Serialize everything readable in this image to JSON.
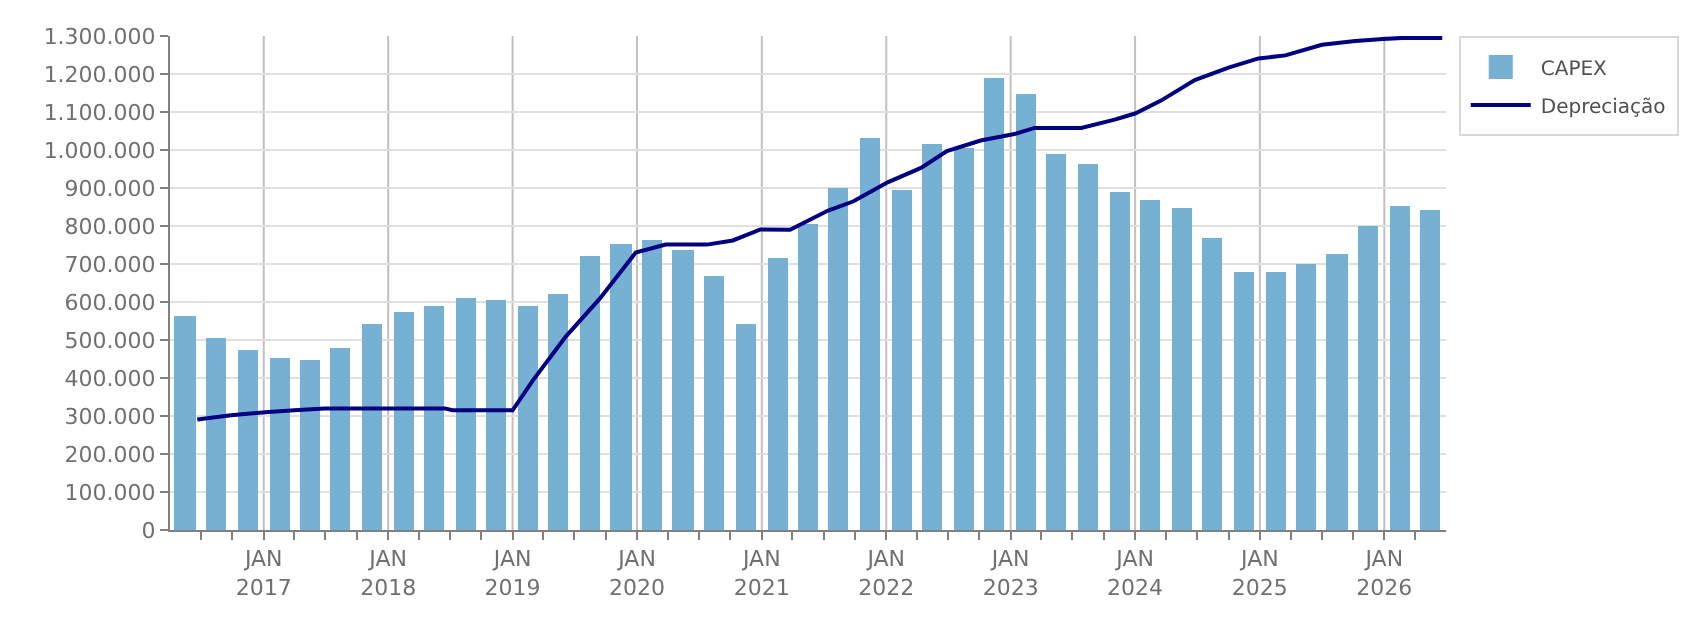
{
  "chart_data": {
    "type": "bar",
    "xlim": [
      "2016-04-01",
      "2026-07-01"
    ],
    "xticks": [
      {
        "value": "2016-07-01",
        "label": null
      },
      {
        "value": "2016-10-01",
        "label": null
      },
      {
        "value": "2017-01-01",
        "label": "JAN\n2017"
      },
      {
        "value": "2017-04-01",
        "label": null
      },
      {
        "value": "2017-07-01",
        "label": null
      },
      {
        "value": "2017-10-01",
        "label": null
      },
      {
        "value": "2018-01-01",
        "label": "JAN\n2018"
      },
      {
        "value": "2018-04-01",
        "label": null
      },
      {
        "value": "2018-07-01",
        "label": null
      },
      {
        "value": "2018-10-01",
        "label": null
      },
      {
        "value": "2019-01-01",
        "label": "JAN\n2019"
      },
      {
        "value": "2019-04-01",
        "label": null
      },
      {
        "value": "2019-07-01",
        "label": null
      },
      {
        "value": "2019-10-01",
        "label": null
      },
      {
        "value": "2020-01-01",
        "label": "JAN\n2020"
      },
      {
        "value": "2020-04-01",
        "label": null
      },
      {
        "value": "2020-07-01",
        "label": null
      },
      {
        "value": "2020-10-01",
        "label": null
      },
      {
        "value": "2021-01-01",
        "label": "JAN\n2021"
      },
      {
        "value": "2021-04-01",
        "label": null
      },
      {
        "value": "2021-07-01",
        "label": null
      },
      {
        "value": "2021-10-01",
        "label": null
      },
      {
        "value": "2022-01-01",
        "label": "JAN\n2022"
      },
      {
        "value": "2022-04-01",
        "label": null
      },
      {
        "value": "2022-07-01",
        "label": null
      },
      {
        "value": "2022-10-01",
        "label": null
      },
      {
        "value": "2023-01-01",
        "label": "JAN\n2023"
      },
      {
        "value": "2023-04-01",
        "label": null
      },
      {
        "value": "2023-07-01",
        "label": null
      },
      {
        "value": "2023-10-01",
        "label": null
      },
      {
        "value": "2024-01-01",
        "label": "JAN\n2024"
      },
      {
        "value": "2024-04-01",
        "label": null
      },
      {
        "value": "2024-07-01",
        "label": null
      },
      {
        "value": "2024-10-01",
        "label": null
      },
      {
        "value": "2025-01-01",
        "label": "JAN\n2025"
      },
      {
        "value": "2025-04-01",
        "label": null
      },
      {
        "value": "2025-07-01",
        "label": null
      },
      {
        "value": "2025-10-01",
        "label": null
      },
      {
        "value": "2026-01-01",
        "label": "JAN\n2026"
      },
      {
        "value": "2026-04-01",
        "label": null
      }
    ],
    "ylim": [
      0,
      1300000
    ],
    "yticks": [
      0,
      {
        "value": 100000,
        "label": "100.000"
      },
      {
        "value": 200000,
        "label": "200.000"
      },
      {
        "value": 300000,
        "label": "300.000"
      },
      {
        "value": 400000,
        "label": "400.000"
      },
      {
        "value": 500000,
        "label": "500.000"
      },
      {
        "value": 600000,
        "label": "600.000"
      },
      {
        "value": 700000,
        "label": "700.000"
      },
      {
        "value": 800000,
        "label": "800.000"
      },
      {
        "value": 900000,
        "label": "900.000"
      },
      {
        "value": 1000000,
        "label": "1.000.000"
      },
      {
        "value": 1100000,
        "label": "1.100.000"
      },
      {
        "value": 1200000,
        "label": "1.200.000"
      },
      {
        "value": 1300000,
        "label": "1.300.000"
      }
    ],
    "grid": true,
    "legend": "top right",
    "x": [
      "2016-05-15",
      "2016-08-15",
      "2016-11-15",
      "2017-02-15",
      "2017-05-15",
      "2017-08-15",
      "2017-11-15",
      "2018-02-15",
      "2018-05-15",
      "2018-08-15",
      "2018-11-15",
      "2019-02-15",
      "2019-05-15",
      "2019-08-15",
      "2019-11-15",
      "2020-02-15",
      "2020-05-15",
      "2020-08-15",
      "2020-11-15",
      "2021-02-15",
      "2021-05-15",
      "2021-08-15",
      "2021-11-15",
      "2022-02-15",
      "2022-05-15",
      "2022-08-15",
      "2022-11-15",
      "2023-02-15",
      "2023-05-15",
      "2023-08-15",
      "2023-11-15",
      "2024-02-15",
      "2024-05-15",
      "2024-08-15",
      "2024-11-15",
      "2025-02-15",
      "2025-05-15",
      "2025-08-15",
      "2025-11-15",
      "2026-02-15",
      "2026-05-15"
    ],
    "series": [
      {
        "name": "CAPEX",
        "color": "#76b0d2",
        "values": [
          562000,
          503000,
          473000,
          453000,
          448000,
          478000,
          542000,
          572000,
          587000,
          612000,
          607000,
          592000,
          622000,
          721000,
          751000,
          761000,
          736000,
          667000,
          543000,
          716000,
          805000,
          900000,
          1029000,
          895000,
          1014000,
          1004000,
          1188000,
          1148000,
          989000,
          964000,
          890000,
          870000,
          845000,
          766000,
          677000,
          677000,
          701000,
          726000,
          801000,
          855000,
          840000
        ]
      },
      {
        "name": "Depreciação",
        "type": "line",
        "color": "#000080",
        "x": [
          "2016-06-20",
          "2016-09-27",
          "2017-01-05",
          "2017-04-01",
          "2017-06-28",
          "2018-06-17",
          "2018-07-08",
          "2019-01-01",
          "2019-03-01",
          "2019-06-06",
          "2019-09-13",
          "2019-12-28",
          "2020-03-25",
          "2020-07-24",
          "2020-10-08",
          "2020-12-28",
          "2021-03-25",
          "2021-07-13",
          "2021-09-27",
          "2022-01-05",
          "2022-04-13",
          "2022-06-28",
          "2022-10-05",
          "2023-01-12",
          "2023-03-12",
          "2023-07-27",
          "2023-11-02",
          "2024-01-01",
          "2024-03-17",
          "2024-06-24",
          "2024-10-01",
          "2024-12-28",
          "2025-03-17",
          "2025-07-02",
          "2025-10-08",
          "2025-12-28",
          "2026-02-24",
          "2026-06-20"
        ],
        "values": [
          291000,
          302000,
          310000,
          315000,
          320000,
          320000,
          315000,
          315000,
          393000,
          509000,
          608000,
          730000,
          751000,
          751000,
          762000,
          791000,
          790000,
          840000,
          865000,
          915000,
          953000,
          997000,
          1025000,
          1042000,
          1058000,
          1058000,
          1080000,
          1096000,
          1130000,
          1184000,
          1217000,
          1241000,
          1249000,
          1277000,
          1287000,
          1292000,
          1295000,
          1295000
        ]
      }
    ]
  }
}
